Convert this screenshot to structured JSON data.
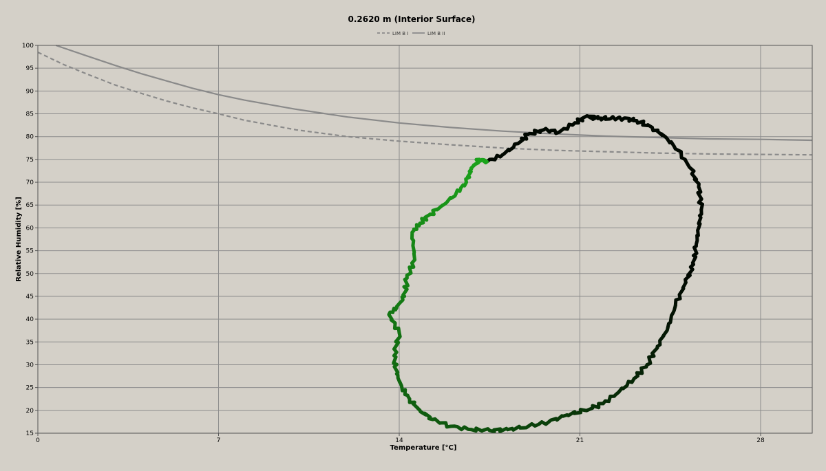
{
  "chart_data": {
    "type": "line",
    "title": "0.2620 m (Interior Surface)",
    "xlabel": "Temperature [°C]",
    "ylabel": "Relative Humidity [%]",
    "xlim": [
      0,
      30
    ],
    "ylim": [
      15,
      100
    ],
    "x_ticks": [
      "0",
      "7",
      "14",
      "21",
      "28"
    ],
    "y_ticks": [
      "15",
      "20",
      "25",
      "30",
      "35",
      "40",
      "45",
      "50",
      "55",
      "60",
      "65",
      "70",
      "75",
      "80",
      "85",
      "90",
      "95",
      "100"
    ],
    "grid": true,
    "legend_position": "top-center",
    "series": [
      {
        "name": "LIM B I",
        "style": "dashed",
        "color": "#8a8a8a",
        "x": [
          0,
          1,
          2,
          3,
          4,
          5,
          6,
          7,
          8,
          10,
          12,
          14,
          16,
          18,
          20,
          22,
          24,
          26,
          28,
          30
        ],
        "y": [
          98.5,
          95.8,
          93.5,
          91.3,
          89.5,
          87.8,
          86.3,
          85.0,
          83.6,
          81.5,
          80.0,
          79.0,
          78.2,
          77.5,
          77.0,
          76.7,
          76.4,
          76.2,
          76.1,
          76.0
        ]
      },
      {
        "name": "LIM B II",
        "style": "solid",
        "color": "#8a8a8a",
        "x": [
          0.7,
          2,
          3,
          4,
          5,
          6,
          7,
          8,
          10,
          12,
          14,
          16,
          18,
          20,
          22,
          24,
          26,
          28,
          30
        ],
        "y": [
          100,
          97.5,
          95.6,
          93.8,
          92.2,
          90.6,
          89.2,
          88.0,
          86.0,
          84.3,
          83.0,
          82.0,
          81.2,
          80.6,
          80.1,
          79.8,
          79.5,
          79.4,
          79.2
        ]
      },
      {
        "name": "",
        "style": "measured",
        "color_start": "#1ca81c",
        "color_end": "#000000",
        "x": [
          17.4,
          18.0,
          18.6,
          19.0,
          19.6,
          20.2,
          20.8,
          21.3,
          21.7,
          22.2,
          22.7,
          23.2,
          23.8,
          24.3,
          24.8,
          25.3,
          25.6,
          25.7,
          25.6,
          25.5,
          25.4,
          25.1,
          24.7,
          24.4,
          24.0,
          23.6,
          23.1,
          22.5,
          21.9,
          21.2,
          20.5,
          19.8,
          19.0,
          18.2,
          17.5,
          16.8,
          16.0,
          15.3,
          14.8,
          14.4,
          14.1,
          13.9,
          13.8,
          14.0,
          13.6,
          13.9,
          14.2,
          14.3,
          14.6,
          14.5,
          14.8,
          15.2,
          15.7,
          16.2,
          16.6,
          16.8,
          17.1,
          17.4
        ],
        "y": [
          74.5,
          76.0,
          78.5,
          80.5,
          81.5,
          81.0,
          83.0,
          84.5,
          84.0,
          84.0,
          84.0,
          83.5,
          82.0,
          80.0,
          77.0,
          73.0,
          69.0,
          64.0,
          60.0,
          56.0,
          52.0,
          48.0,
          43.0,
          38.0,
          34.0,
          30.0,
          27.0,
          24.0,
          21.5,
          20.0,
          19.0,
          17.5,
          16.5,
          15.8,
          15.6,
          15.8,
          16.5,
          18.0,
          20.0,
          22.5,
          25.0,
          28.0,
          32.0,
          37.0,
          41.0,
          42.5,
          45.0,
          49.0,
          53.0,
          59.0,
          61.0,
          63.0,
          65.0,
          67.5,
          70.0,
          73.0,
          75.0,
          74.5
        ]
      }
    ]
  }
}
